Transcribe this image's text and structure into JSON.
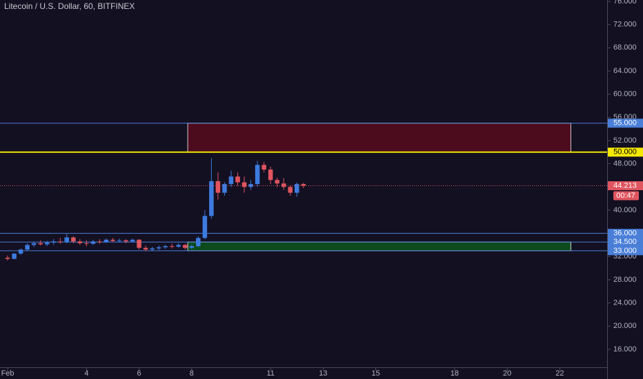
{
  "chart_data": {
    "type": "candlestick",
    "title": "Litecoin / U.S. Dollar, 60, BITFINEX",
    "x": [
      1.0,
      1.25,
      1.5,
      1.75,
      2.0,
      2.25,
      2.5,
      2.75,
      3.0,
      3.25,
      3.5,
      3.75,
      4.0,
      4.25,
      4.5,
      4.75,
      5.0,
      5.25,
      5.5,
      5.75,
      6.0,
      6.25,
      6.5,
      6.75,
      7.0,
      7.25,
      7.5,
      7.75,
      8.0,
      8.25,
      8.5,
      8.75,
      9.0,
      9.25,
      9.5,
      9.75,
      10.0,
      10.25,
      10.5,
      10.75,
      11.0,
      11.25,
      11.5,
      11.75,
      12.0,
      12.25
    ],
    "open": [
      31.8,
      31.6,
      32.5,
      33.2,
      34.0,
      34.3,
      34.1,
      34.4,
      34.6,
      34.5,
      35.3,
      34.6,
      34.3,
      34.2,
      34.6,
      34.5,
      34.9,
      34.7,
      34.8,
      34.6,
      34.9,
      33.5,
      33.2,
      33.4,
      33.6,
      33.8,
      33.7,
      34.0,
      33.5,
      33.8,
      35.2,
      39.0,
      45.0,
      43.0,
      44.5,
      45.8,
      44.8,
      44.0,
      44.5,
      47.8,
      47.0,
      45.2,
      44.6,
      44.0,
      43.0,
      44.5
    ],
    "high": [
      32.2,
      32.6,
      33.4,
      34.3,
      34.6,
      34.8,
      34.7,
      35.0,
      35.2,
      35.9,
      35.5,
      35.0,
      34.8,
      34.9,
      35.0,
      35.1,
      35.2,
      35.1,
      35.0,
      35.1,
      35.0,
      33.9,
      33.7,
      33.9,
      34.0,
      34.2,
      34.3,
      34.2,
      34.0,
      35.5,
      40.0,
      49.0,
      46.5,
      44.8,
      46.8,
      46.5,
      45.8,
      45.2,
      48.5,
      48.3,
      47.5,
      45.6,
      45.5,
      44.3,
      44.8,
      44.7
    ],
    "low": [
      31.3,
      31.5,
      32.3,
      33.0,
      33.6,
      33.9,
      33.8,
      34.0,
      34.2,
      34.3,
      34.3,
      34.0,
      33.8,
      34.0,
      34.2,
      34.3,
      34.5,
      34.4,
      34.3,
      34.4,
      33.2,
      32.9,
      32.9,
      33.1,
      33.3,
      33.4,
      33.5,
      33.2,
      33.3,
      33.6,
      35.0,
      38.5,
      41.8,
      42.5,
      44.0,
      44.2,
      43.0,
      43.5,
      44.0,
      46.5,
      44.5,
      44.0,
      43.5,
      42.5,
      42.3,
      43.8
    ],
    "close": [
      31.6,
      32.5,
      33.2,
      34.0,
      34.3,
      34.1,
      34.4,
      34.6,
      34.5,
      35.3,
      34.6,
      34.3,
      34.2,
      34.6,
      34.5,
      34.9,
      34.7,
      34.8,
      34.6,
      34.9,
      33.5,
      33.2,
      33.4,
      33.6,
      33.8,
      33.7,
      34.0,
      33.5,
      33.8,
      35.2,
      39.0,
      45.0,
      43.0,
      44.5,
      45.8,
      44.8,
      44.0,
      44.5,
      47.8,
      47.0,
      45.2,
      44.6,
      44.0,
      43.0,
      44.5,
      44.213
    ],
    "up_color": "#3d7be0",
    "down_color": "#e0555f",
    "xlim": [
      0.71,
      23.8
    ],
    "xticks": [
      {
        "value": 1,
        "label": "Feb"
      },
      4,
      6,
      8,
      11,
      13,
      15,
      18,
      20,
      22
    ],
    "ylim": [
      12.9,
      76.24
    ],
    "yticks": [
      {
        "value": 16,
        "label": "16.000"
      },
      {
        "value": 20,
        "label": "20.000"
      },
      {
        "value": 24,
        "label": "24.000"
      },
      {
        "value": 28,
        "label": "28.000"
      },
      {
        "value": 32,
        "label": "32.000"
      },
      {
        "value": 36,
        "label": "36.000"
      },
      {
        "value": 40,
        "label": "40.000"
      },
      {
        "value": 44,
        "label": "44.000"
      },
      {
        "value": 48,
        "label": "48.000"
      },
      {
        "value": 52,
        "label": "52.000"
      },
      {
        "value": 56,
        "label": "56.000"
      },
      {
        "value": 60,
        "label": "60.000"
      },
      {
        "value": 64,
        "label": "64.000"
      },
      {
        "value": 68,
        "label": "68.000"
      },
      {
        "value": 72,
        "label": "72.000"
      },
      {
        "value": 76,
        "label": "76.000"
      }
    ],
    "levels": [
      {
        "value": 55,
        "label": "55.000",
        "color": "#4a7fd8"
      },
      {
        "value": 50,
        "label": "50.000",
        "color": "#f5e800"
      },
      {
        "value": 36,
        "label": "36.000",
        "color": "#4a7fd8"
      },
      {
        "value": 34.5,
        "label": "34.500",
        "color": "#4a7fd8"
      },
      {
        "value": 33,
        "label": "33.000",
        "color": "#4a7fd8"
      }
    ],
    "zones": [
      {
        "start": 7.85,
        "end": 22.42,
        "bottom": 50,
        "top": 55,
        "fill": "#4d0c1e",
        "border": "#d9c9cd"
      },
      {
        "start": 7.85,
        "end": 22.42,
        "bottom": 33,
        "top": 34.5,
        "fill": "#0d4a1c",
        "border": "#c9d9cd"
      }
    ],
    "last_price": {
      "value": 44.213,
      "label": "44.213",
      "color": "#e0555f"
    },
    "countdown": "00:47"
  }
}
